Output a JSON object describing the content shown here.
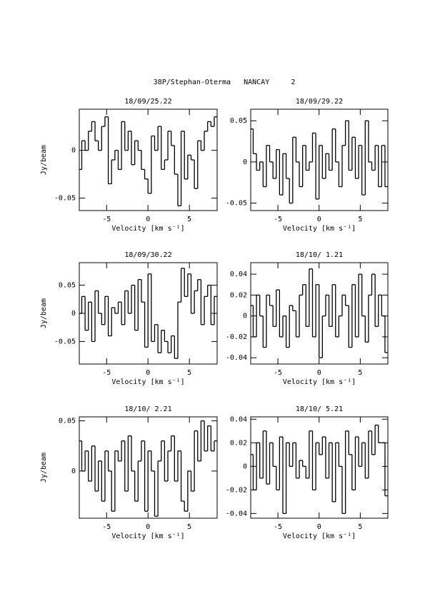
{
  "title": "38P/Stephan-Oterma   NANCAY     2",
  "chart_data": [
    {
      "type": "line",
      "drawstyle": "steps-mid",
      "title": "18/09/25.22",
      "xlabel": "Velocity [km s⁻¹]",
      "ylabel": "Jy/beam",
      "color": "#000000",
      "x": [
        -8.2,
        -7.8,
        -7.4,
        -7,
        -6.6,
        -6.2,
        -5.8,
        -5.4,
        -5,
        -4.6,
        -4.2,
        -3.8,
        -3.4,
        -3,
        -2.6,
        -2.2,
        -1.8,
        -1.4,
        -1,
        -0.6,
        -0.2,
        0.2,
        0.6,
        1,
        1.4,
        1.8,
        2.2,
        2.6,
        3,
        3.4,
        3.8,
        4.2,
        4.6,
        5,
        5.4,
        5.8,
        6.2,
        6.6,
        7,
        7.4,
        7.8,
        8.2
      ],
      "values": [
        -0.02,
        0.01,
        0.0,
        0.02,
        0.03,
        0.01,
        0.0,
        0.025,
        0.035,
        -0.035,
        -0.01,
        0.0,
        -0.02,
        0.03,
        0.0,
        0.02,
        -0.015,
        0.01,
        0.0,
        -0.02,
        -0.03,
        -0.045,
        0.015,
        0.0,
        0.025,
        -0.02,
        -0.01,
        0.02,
        0.005,
        -0.025,
        -0.058,
        0.02,
        -0.03,
        -0.005,
        -0.01,
        -0.04,
        0.01,
        0.0,
        0.02,
        0.03,
        0.025,
        0.035
      ],
      "xlim": [
        -8.3,
        8.35
      ],
      "ylim": [
        -0.063,
        0.043
      ],
      "xticks": [
        -5,
        0,
        5
      ],
      "yticks": [
        -0.05,
        0
      ]
    },
    {
      "type": "line",
      "drawstyle": "steps-mid",
      "title": "18/09/29.22",
      "xlabel": "Velocity [km s⁻¹]",
      "color": "#000000",
      "x": [
        -8.2,
        -7.8,
        -7.4,
        -7,
        -6.6,
        -6.2,
        -5.8,
        -5.4,
        -5,
        -4.6,
        -4.2,
        -3.8,
        -3.4,
        -3,
        -2.6,
        -2.2,
        -1.8,
        -1.4,
        -1,
        -0.6,
        -0.2,
        0.2,
        0.6,
        1,
        1.4,
        1.8,
        2.2,
        2.6,
        3,
        3.4,
        3.8,
        4.2,
        4.6,
        5,
        5.4,
        5.8,
        6.2,
        6.6,
        7,
        7.4,
        7.8,
        8.2
      ],
      "values": [
        0.04,
        0.01,
        -0.01,
        0.0,
        -0.03,
        0.02,
        0.0,
        -0.02,
        0.015,
        -0.04,
        0.01,
        -0.02,
        -0.05,
        0.03,
        0.0,
        -0.03,
        0.02,
        -0.01,
        0.0,
        0.035,
        -0.045,
        0.02,
        -0.02,
        0.01,
        -0.01,
        0.04,
        0.0,
        -0.03,
        0.02,
        0.05,
        -0.01,
        0.03,
        -0.02,
        0.02,
        -0.04,
        0.05,
        0.0,
        -0.01,
        0.02,
        -0.03,
        0.02,
        -0.03
      ],
      "xlim": [
        -8.3,
        8.35
      ],
      "ylim": [
        -0.059,
        0.064
      ],
      "xticks": [
        -5,
        0,
        5
      ],
      "yticks": [
        -0.05,
        0,
        0.05
      ]
    },
    {
      "type": "line",
      "drawstyle": "steps-mid",
      "title": "18/09/30.22",
      "xlabel": "Velocity [km s⁻¹]",
      "ylabel": "Jy/beam",
      "color": "#000000",
      "x": [
        -8.2,
        -7.8,
        -7.4,
        -7,
        -6.6,
        -6.2,
        -5.8,
        -5.4,
        -5,
        -4.6,
        -4.2,
        -3.8,
        -3.4,
        -3,
        -2.6,
        -2.2,
        -1.8,
        -1.4,
        -1,
        -0.6,
        -0.2,
        0.2,
        0.6,
        1,
        1.4,
        1.8,
        2.2,
        2.6,
        3,
        3.4,
        3.8,
        4.2,
        4.6,
        5,
        5.4,
        5.8,
        6.2,
        6.6,
        7,
        7.4,
        7.8,
        8.2
      ],
      "values": [
        0.0,
        0.03,
        -0.03,
        0.02,
        -0.05,
        0.04,
        0.0,
        -0.02,
        0.03,
        -0.04,
        0.01,
        0.0,
        0.02,
        -0.02,
        0.04,
        0.0,
        0.05,
        -0.03,
        0.06,
        0.02,
        -0.06,
        0.07,
        -0.05,
        -0.02,
        -0.07,
        -0.03,
        -0.05,
        -0.07,
        -0.04,
        -0.08,
        0.02,
        0.08,
        0.03,
        0.07,
        0.0,
        0.04,
        0.06,
        -0.02,
        0.03,
        0.05,
        -0.02,
        0.03
      ],
      "xlim": [
        -8.3,
        8.35
      ],
      "ylim": [
        -0.09,
        0.09
      ],
      "xticks": [
        -5,
        0,
        5
      ],
      "yticks": [
        -0.05,
        0,
        0.05
      ]
    },
    {
      "type": "line",
      "drawstyle": "steps-mid",
      "title": "18/10/ 1.21",
      "xlabel": "Velocity [km s⁻¹]",
      "color": "#000000",
      "x": [
        -8.2,
        -7.8,
        -7.4,
        -7,
        -6.6,
        -6.2,
        -5.8,
        -5.4,
        -5,
        -4.6,
        -4.2,
        -3.8,
        -3.4,
        -3,
        -2.6,
        -2.2,
        -1.8,
        -1.4,
        -1,
        -0.6,
        -0.2,
        0.2,
        0.6,
        1,
        1.4,
        1.8,
        2.2,
        2.6,
        3,
        3.4,
        3.8,
        4.2,
        4.6,
        5,
        5.4,
        5.8,
        6.2,
        6.6,
        7,
        7.4,
        7.8,
        8.2
      ],
      "values": [
        0.01,
        -0.02,
        0.02,
        0.0,
        -0.03,
        0.02,
        0.01,
        -0.01,
        0.025,
        -0.02,
        0.0,
        -0.03,
        0.01,
        0.005,
        -0.02,
        0.02,
        0.03,
        -0.01,
        0.045,
        -0.02,
        0.03,
        -0.04,
        0.0,
        0.02,
        -0.01,
        0.03,
        -0.02,
        0.0,
        0.02,
        0.01,
        -0.03,
        0.03,
        -0.02,
        0.04,
        0.0,
        -0.025,
        0.02,
        0.04,
        -0.01,
        0.02,
        0.0,
        -0.035
      ],
      "xlim": [
        -8.3,
        8.35
      ],
      "ylim": [
        -0.046,
        0.051
      ],
      "xticks": [
        -5,
        0,
        5
      ],
      "yticks": [
        -0.04,
        -0.02,
        0,
        0.02,
        0.04
      ]
    },
    {
      "type": "line",
      "drawstyle": "steps-mid",
      "title": "18/10/ 2.21",
      "xlabel": "Velocity [km s⁻¹]",
      "ylabel": "Jy/beam",
      "color": "#000000",
      "x": [
        -8.2,
        -7.8,
        -7.4,
        -7,
        -6.6,
        -6.2,
        -5.8,
        -5.4,
        -5,
        -4.6,
        -4.2,
        -3.8,
        -3.4,
        -3,
        -2.6,
        -2.2,
        -1.8,
        -1.4,
        -1,
        -0.6,
        -0.2,
        0.2,
        0.6,
        1,
        1.4,
        1.8,
        2.2,
        2.6,
        3,
        3.4,
        3.8,
        4.2,
        4.6,
        5,
        5.4,
        5.8,
        6.2,
        6.6,
        7,
        7.4,
        7.8,
        8.2
      ],
      "values": [
        0.03,
        0.0,
        0.02,
        -0.01,
        0.025,
        -0.02,
        0.01,
        -0.03,
        0.02,
        0.0,
        -0.04,
        0.02,
        0.01,
        0.03,
        -0.02,
        0.035,
        0.0,
        -0.03,
        0.01,
        0.03,
        -0.04,
        0.02,
        0.0,
        -0.045,
        0.01,
        0.03,
        -0.01,
        0.02,
        0.035,
        -0.01,
        0.02,
        -0.03,
        -0.04,
        0.0,
        -0.02,
        0.04,
        0.01,
        0.05,
        0.02,
        0.045,
        0.02,
        0.03
      ],
      "xlim": [
        -8.3,
        8.35
      ],
      "ylim": [
        -0.047,
        0.054
      ],
      "xticks": [
        -5,
        0,
        5
      ],
      "yticks": [
        0,
        0.05
      ]
    },
    {
      "type": "line",
      "drawstyle": "steps-mid",
      "title": "18/10/ 5.21",
      "xlabel": "Velocity [km s⁻¹]",
      "color": "#000000",
      "x": [
        -8.2,
        -7.8,
        -7.4,
        -7,
        -6.6,
        -6.2,
        -5.8,
        -5.4,
        -5,
        -4.6,
        -4.2,
        -3.8,
        -3.4,
        -3,
        -2.6,
        -2.2,
        -1.8,
        -1.4,
        -1,
        -0.6,
        -0.2,
        0.2,
        0.6,
        1,
        1.4,
        1.8,
        2.2,
        2.6,
        3,
        3.4,
        3.8,
        4.2,
        4.6,
        5,
        5.4,
        5.8,
        6.2,
        6.6,
        7,
        7.4,
        7.8,
        8.2
      ],
      "values": [
        0.01,
        -0.02,
        0.02,
        -0.01,
        0.03,
        -0.015,
        0.02,
        0.0,
        -0.02,
        0.025,
        -0.04,
        0.02,
        0.0,
        0.02,
        -0.01,
        0.005,
        0.0,
        -0.01,
        0.03,
        -0.02,
        0.02,
        0.01,
        0.025,
        -0.01,
        0.02,
        -0.03,
        0.02,
        0.0,
        -0.04,
        0.03,
        0.01,
        -0.02,
        0.025,
        0.0,
        0.02,
        -0.01,
        0.03,
        0.01,
        0.035,
        0.02,
        0.02,
        -0.025
      ],
      "xlim": [
        -8.3,
        8.35
      ],
      "ylim": [
        -0.044,
        0.042
      ],
      "xticks": [
        -5,
        0,
        5
      ],
      "yticks": [
        -0.04,
        -0.02,
        0,
        0.02,
        0.04
      ]
    }
  ]
}
